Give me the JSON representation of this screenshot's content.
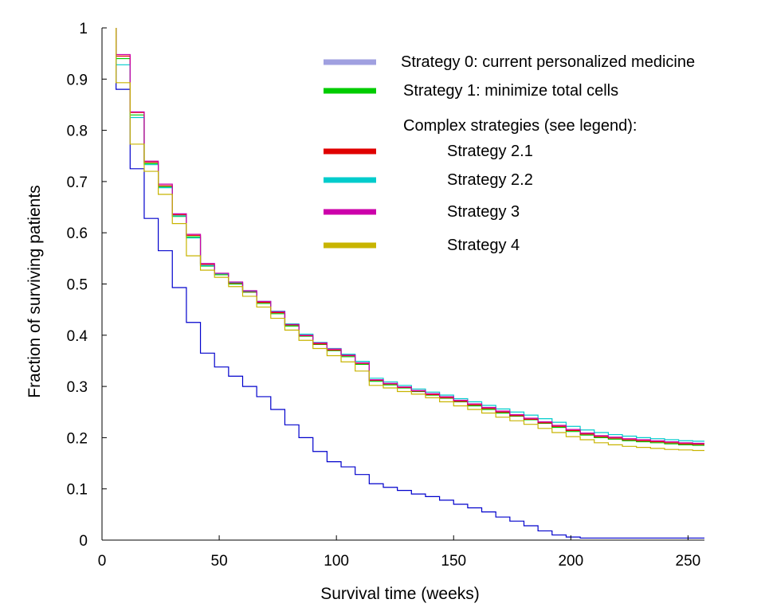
{
  "chart_data": {
    "type": "line",
    "step": true,
    "xlabel": "Survival time (weeks)",
    "ylabel": "Fraction of surviving patients",
    "xlim": [
      0,
      257
    ],
    "ylim": [
      0,
      1
    ],
    "x_ticks": [
      0,
      50,
      100,
      150,
      200,
      250
    ],
    "y_ticks": [
      0,
      0.1,
      0.2,
      0.3,
      0.4,
      0.5,
      0.6,
      0.7,
      0.8,
      0.9,
      1
    ],
    "x_tick_labels": [
      "0",
      "50",
      "100",
      "150",
      "200",
      "250"
    ],
    "y_tick_labels": [
      "0",
      "0.1",
      "0.2",
      "0.3",
      "0.4",
      "0.5",
      "0.6",
      "0.7",
      "0.8",
      "0.9",
      "1"
    ],
    "grid": false,
    "legend_position": "top-right",
    "legend_note": "Complex strategies (see legend):",
    "x": [
      6,
      12,
      18,
      24,
      30,
      36,
      42,
      48,
      54,
      60,
      66,
      72,
      78,
      84,
      90,
      96,
      102,
      108,
      114,
      120,
      126,
      132,
      138,
      144,
      150,
      156,
      162,
      168,
      174,
      180,
      186,
      192,
      198,
      204,
      210,
      216,
      222,
      228,
      234,
      240,
      246,
      252,
      257
    ],
    "series": [
      {
        "name": "Strategy 0: current personalized medicine",
        "color": "#0000cc",
        "legend_color": "#a0a0e0",
        "values": [
          0.88,
          0.725,
          0.628,
          0.565,
          0.493,
          0.425,
          0.365,
          0.338,
          0.32,
          0.3,
          0.28,
          0.255,
          0.225,
          0.2,
          0.173,
          0.153,
          0.143,
          0.128,
          0.11,
          0.103,
          0.097,
          0.09,
          0.085,
          0.078,
          0.07,
          0.063,
          0.055,
          0.045,
          0.037,
          0.028,
          0.018,
          0.01,
          0.006,
          0.004,
          0.004,
          0.004,
          0.004,
          0.004,
          0.004,
          0.004,
          0.004,
          0.004,
          0.004
        ]
      },
      {
        "name": "Strategy 1: minimize total cells",
        "color": "#00cc00",
        "values": [
          0.94,
          0.83,
          0.735,
          0.69,
          0.632,
          0.592,
          0.535,
          0.518,
          0.5,
          0.484,
          0.462,
          0.442,
          0.418,
          0.398,
          0.382,
          0.37,
          0.358,
          0.343,
          0.31,
          0.303,
          0.297,
          0.29,
          0.283,
          0.277,
          0.27,
          0.262,
          0.255,
          0.248,
          0.242,
          0.235,
          0.228,
          0.22,
          0.212,
          0.205,
          0.2,
          0.197,
          0.194,
          0.192,
          0.19,
          0.188,
          0.186,
          0.185,
          0.185
        ]
      },
      {
        "name": "Strategy 2.1",
        "color": "#e00000",
        "values": [
          0.945,
          0.835,
          0.738,
          0.692,
          0.635,
          0.595,
          0.538,
          0.52,
          0.502,
          0.485,
          0.464,
          0.444,
          0.42,
          0.399,
          0.383,
          0.371,
          0.36,
          0.345,
          0.312,
          0.305,
          0.298,
          0.291,
          0.284,
          0.278,
          0.271,
          0.264,
          0.257,
          0.25,
          0.243,
          0.236,
          0.229,
          0.222,
          0.214,
          0.207,
          0.202,
          0.199,
          0.196,
          0.194,
          0.192,
          0.19,
          0.188,
          0.187,
          0.187
        ]
      },
      {
        "name": "Strategy 2.2",
        "color": "#00cccc",
        "values": [
          0.928,
          0.825,
          0.733,
          0.688,
          0.633,
          0.59,
          0.536,
          0.52,
          0.503,
          0.486,
          0.466,
          0.447,
          0.422,
          0.402,
          0.386,
          0.374,
          0.363,
          0.349,
          0.316,
          0.309,
          0.302,
          0.295,
          0.289,
          0.283,
          0.276,
          0.27,
          0.263,
          0.256,
          0.25,
          0.244,
          0.237,
          0.23,
          0.222,
          0.215,
          0.21,
          0.206,
          0.203,
          0.2,
          0.198,
          0.196,
          0.194,
          0.193,
          0.193
        ]
      },
      {
        "name": "Strategy 3",
        "color": "#cc00aa",
        "values": [
          0.948,
          0.836,
          0.74,
          0.695,
          0.637,
          0.597,
          0.54,
          0.521,
          0.504,
          0.487,
          0.466,
          0.446,
          0.421,
          0.4,
          0.385,
          0.373,
          0.361,
          0.346,
          0.313,
          0.306,
          0.299,
          0.292,
          0.286,
          0.28,
          0.273,
          0.266,
          0.259,
          0.252,
          0.245,
          0.238,
          0.231,
          0.224,
          0.216,
          0.209,
          0.204,
          0.201,
          0.198,
          0.196,
          0.194,
          0.192,
          0.19,
          0.189,
          0.189
        ]
      },
      {
        "name": "Strategy 4",
        "color": "#c8b400",
        "values": [
          0.893,
          0.773,
          0.72,
          0.675,
          0.618,
          0.555,
          0.527,
          0.513,
          0.495,
          0.476,
          0.455,
          0.433,
          0.41,
          0.39,
          0.374,
          0.36,
          0.348,
          0.33,
          0.302,
          0.297,
          0.29,
          0.285,
          0.278,
          0.27,
          0.262,
          0.255,
          0.248,
          0.24,
          0.233,
          0.226,
          0.218,
          0.21,
          0.202,
          0.196,
          0.19,
          0.186,
          0.183,
          0.181,
          0.179,
          0.177,
          0.176,
          0.175,
          0.175
        ]
      }
    ]
  }
}
